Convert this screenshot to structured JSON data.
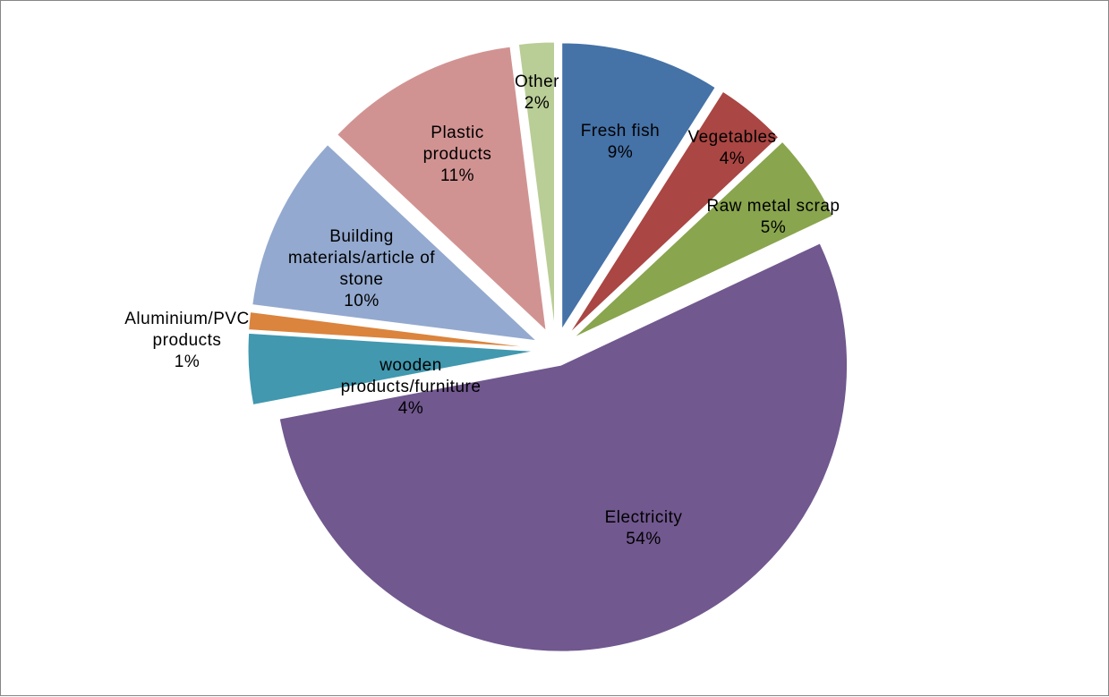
{
  "chart_data": {
    "type": "pie",
    "title": "",
    "start_angle_deg": 0,
    "direction": "clockwise",
    "legend": "none",
    "data_labels": "category and percent",
    "slices": [
      {
        "label": "Fresh fish",
        "percent_label": "9%",
        "value": 9,
        "color": "#4572A7",
        "exploded": true
      },
      {
        "label": "Vegetables",
        "percent_label": "4%",
        "value": 4,
        "color": "#AA4643",
        "exploded": true
      },
      {
        "label": "Raw metal scrap",
        "percent_label": "5%",
        "value": 5,
        "color": "#89A54E",
        "exploded": true
      },
      {
        "label": "Electricity",
        "percent_label": "54%",
        "value": 54,
        "color": "#71588F",
        "exploded": true
      },
      {
        "label": "wooden products/furniture",
        "percent_label": "4%",
        "value": 4,
        "color": "#4198AF",
        "exploded": true
      },
      {
        "label": "Aluminium/PVC products",
        "percent_label": "1%",
        "value": 1,
        "color": "#DB843D",
        "exploded": true
      },
      {
        "label": "Building materials/article of stone",
        "percent_label": "10%",
        "value": 10,
        "color": "#93A9CF",
        "exploded": true
      },
      {
        "label": "Plastic products",
        "percent_label": "11%",
        "value": 11,
        "color": "#D19392",
        "exploded": true
      },
      {
        "label": "Other",
        "percent_label": "2%",
        "value": 2,
        "color": "#B9CD96",
        "exploded": true
      }
    ]
  }
}
